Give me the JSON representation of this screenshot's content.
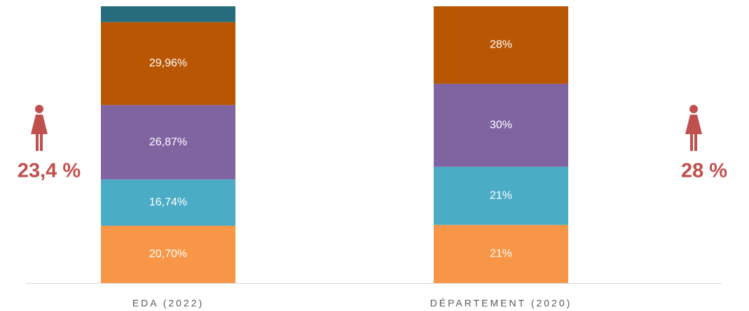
{
  "chart_data": {
    "type": "stacked-bar",
    "categories": [
      "EDA (2022)",
      "DÉPARTEMENT (2020)"
    ],
    "series": [
      {
        "color": "#f79646",
        "values": [
          20.7,
          21
        ],
        "value_labels": [
          "20,70%",
          "21%"
        ]
      },
      {
        "color": "#4bacc6",
        "values": [
          16.74,
          21
        ],
        "value_labels": [
          "16,74%",
          "21%"
        ]
      },
      {
        "color": "#8064a2",
        "values": [
          26.87,
          30
        ],
        "value_labels": [
          "26,87%",
          "30%"
        ]
      },
      {
        "color": "#b85604",
        "values": [
          29.96,
          28
        ],
        "value_labels": [
          "29,96%",
          "28%"
        ]
      },
      {
        "color": "#276c7c",
        "values": [
          5.73,
          null
        ],
        "value_labels": [
          null,
          null
        ]
      }
    ],
    "ylim": [
      0,
      100
    ],
    "annotations": [
      {
        "text": "23,4 %",
        "color": "#c0504d"
      },
      {
        "text": "28 %",
        "color": "#c0504d"
      }
    ]
  }
}
